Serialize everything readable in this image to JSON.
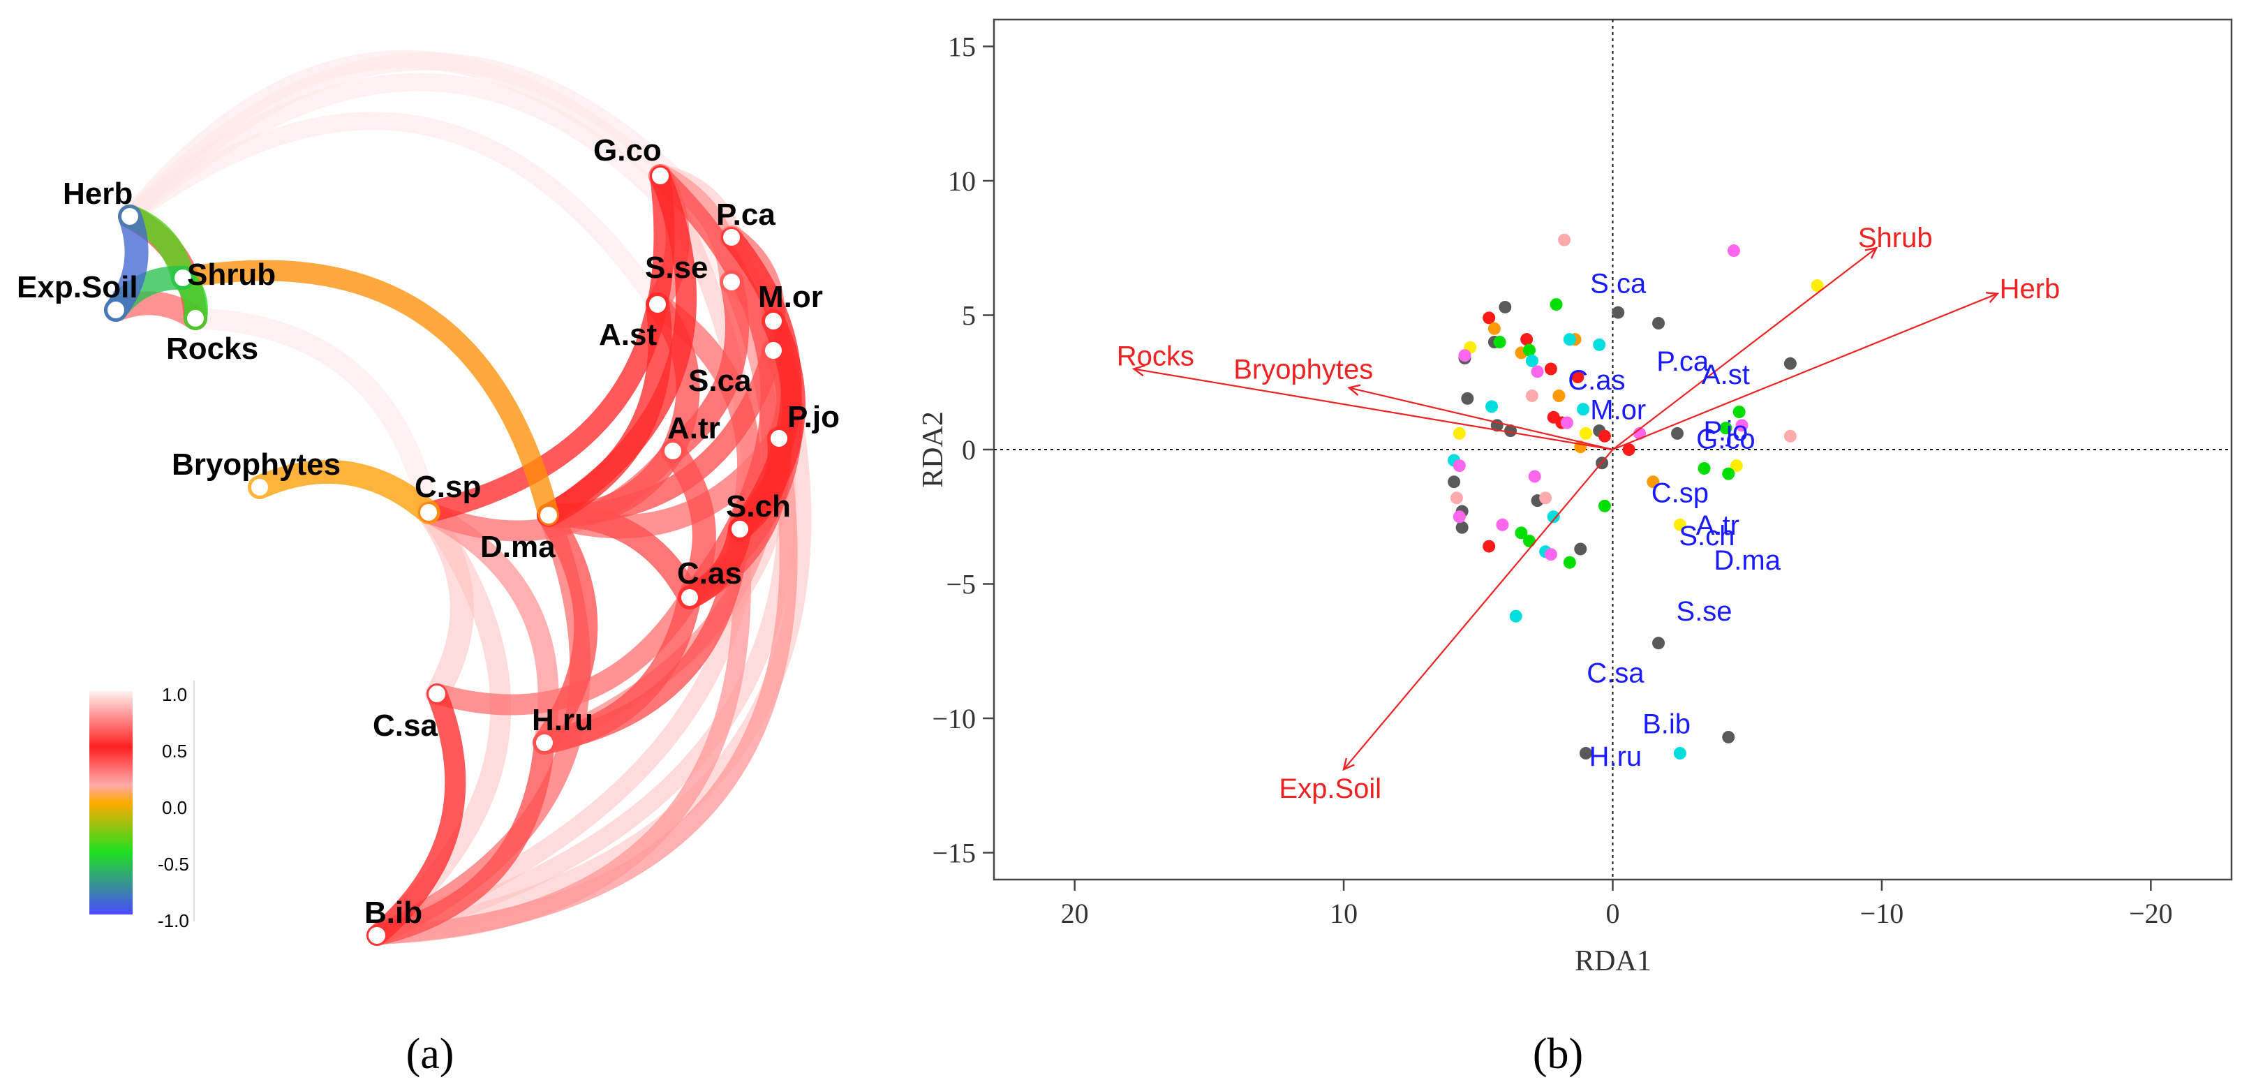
{
  "panel_a": {
    "caption": "(a)",
    "colorbar_ticks": [
      "1.0",
      "0.5",
      "0.0",
      "-0.5",
      "-1.0"
    ],
    "node_labels": [
      "Herb",
      "Exp.Soil",
      "Shrub",
      "Rocks",
      "Bryophytes",
      "G.co",
      "P.ca",
      "S.se",
      "M.or",
      "A.st",
      "S.ca",
      "P.jo",
      "A.tr",
      "C.sp",
      "D.ma",
      "S.ch",
      "C.as",
      "C.sa",
      "H.ru",
      "B.ib"
    ]
  },
  "panel_b": {
    "caption": "(b)"
  },
  "chart_data": [
    {
      "type": "network",
      "title": "",
      "nodes": [
        "Herb",
        "Exp.Soil",
        "Shrub",
        "Rocks",
        "Bryophytes",
        "G.co",
        "P.ca",
        "S.se",
        "M.or",
        "A.st",
        "S.ca",
        "P.jo",
        "A.tr",
        "C.sp",
        "D.ma",
        "S.ch",
        "C.as",
        "C.sa",
        "H.ru",
        "B.ib"
      ],
      "edges": [
        {
          "from": "Herb",
          "to": "Exp.Soil",
          "corr": -0.9
        },
        {
          "from": "Herb",
          "to": "Shrub",
          "corr": -0.4
        },
        {
          "from": "Exp.Soil",
          "to": "Shrub",
          "corr": -0.6
        },
        {
          "from": "Shrub",
          "to": "Rocks",
          "corr": -0.5
        },
        {
          "from": "Herb",
          "to": "Rocks",
          "corr": 0.6
        },
        {
          "from": "Exp.Soil",
          "to": "Rocks",
          "corr": 0.7
        },
        {
          "from": "Shrub",
          "to": "D.ma",
          "corr": 0.1
        },
        {
          "from": "Bryophytes",
          "to": "C.sp",
          "corr": 0.05
        },
        {
          "from": "Herb",
          "to": "G.co",
          "corr": 1.0
        },
        {
          "from": "Herb",
          "to": "P.ca",
          "corr": 1.0
        },
        {
          "from": "Herb",
          "to": "S.se",
          "corr": 1.0
        },
        {
          "from": "Herb",
          "to": "A.st",
          "corr": 1.0
        },
        {
          "from": "Rocks",
          "to": "C.sp",
          "corr": 1.0
        },
        {
          "from": "G.co",
          "to": "P.ca",
          "corr": 0.9
        },
        {
          "from": "G.co",
          "to": "S.se",
          "corr": 0.8
        },
        {
          "from": "G.co",
          "to": "A.st",
          "corr": 0.7
        },
        {
          "from": "G.co",
          "to": "D.ma",
          "corr": 0.5
        },
        {
          "from": "G.co",
          "to": "C.sp",
          "corr": 0.5
        },
        {
          "from": "G.co",
          "to": "C.as",
          "corr": 0.6
        },
        {
          "from": "P.ca",
          "to": "M.or",
          "corr": 0.7
        },
        {
          "from": "P.ca",
          "to": "S.ch",
          "corr": 0.5
        },
        {
          "from": "S.se",
          "to": "A.tr",
          "corr": 0.6
        },
        {
          "from": "S.se",
          "to": "S.ca",
          "corr": 0.8
        },
        {
          "from": "M.or",
          "to": "S.ca",
          "corr": 0.8
        },
        {
          "from": "M.or",
          "to": "S.ch",
          "corr": 0.5
        },
        {
          "from": "M.or",
          "to": "C.as",
          "corr": 0.6
        },
        {
          "from": "A.st",
          "to": "A.tr",
          "corr": 0.6
        },
        {
          "from": "A.st",
          "to": "D.ma",
          "corr": 0.5
        },
        {
          "from": "A.st",
          "to": "S.ch",
          "corr": 0.7
        },
        {
          "from": "S.ca",
          "to": "P.jo",
          "corr": 0.6
        },
        {
          "from": "S.ca",
          "to": "D.ma",
          "corr": 0.6
        },
        {
          "from": "P.jo",
          "to": "S.ch",
          "corr": 0.5
        },
        {
          "from": "P.jo",
          "to": "C.as",
          "corr": 0.6
        },
        {
          "from": "P.jo",
          "to": "D.ma",
          "corr": 0.7
        },
        {
          "from": "A.tr",
          "to": "C.sp",
          "corr": 0.7
        },
        {
          "from": "A.tr",
          "to": "D.ma",
          "corr": 0.6
        },
        {
          "from": "A.tr",
          "to": "C.as",
          "corr": 0.6
        },
        {
          "from": "C.sp",
          "to": "C.sa",
          "corr": 0.9
        },
        {
          "from": "C.sp",
          "to": "H.ru",
          "corr": 0.8
        },
        {
          "from": "D.ma",
          "to": "H.ru",
          "corr": 0.6
        },
        {
          "from": "D.ma",
          "to": "C.as",
          "corr": 0.6
        },
        {
          "from": "D.ma",
          "to": "B.ib",
          "corr": 0.7
        },
        {
          "from": "S.ch",
          "to": "H.ru",
          "corr": 0.6
        },
        {
          "from": "S.ch",
          "to": "C.as",
          "corr": 0.5
        },
        {
          "from": "C.as",
          "to": "H.ru",
          "corr": 0.6
        },
        {
          "from": "C.as",
          "to": "C.sa",
          "corr": 0.7
        },
        {
          "from": "C.sa",
          "to": "B.ib",
          "corr": 0.5
        },
        {
          "from": "H.ru",
          "to": "B.ib",
          "corr": 0.6
        },
        {
          "from": "G.co",
          "to": "B.ib",
          "corr": 0.9
        },
        {
          "from": "P.ca",
          "to": "B.ib",
          "corr": 0.9
        },
        {
          "from": "M.or",
          "to": "B.ib",
          "corr": 0.9
        },
        {
          "from": "P.jo",
          "to": "B.ib",
          "corr": 0.8
        },
        {
          "from": "S.ch",
          "to": "B.ib",
          "corr": 0.8
        },
        {
          "from": "S.se",
          "to": "H.ru",
          "corr": 0.8
        },
        {
          "from": "C.sp",
          "to": "B.ib",
          "corr": 0.9
        },
        {
          "from": "P.ca",
          "to": "H.ru",
          "corr": 0.9
        }
      ],
      "colorscale": {
        "min": -1.0,
        "max": 1.0,
        "colors": [
          "#4a4aff",
          "#20e020",
          "#ffaa00",
          "#ff2a2a",
          "#ffe6e6"
        ]
      }
    },
    {
      "type": "scatter",
      "title": "",
      "xlabel": "RDA1",
      "ylabel": "RDA2",
      "xlim": [
        23,
        -23
      ],
      "ylim": [
        -16,
        16
      ],
      "x_ticks": [
        "20",
        "10",
        "0",
        "−10",
        "−20"
      ],
      "x_tick_values": [
        20,
        10,
        0,
        -10,
        -20
      ],
      "y_ticks": [
        "15",
        "10",
        "5",
        "0",
        "−5",
        "−10",
        "−15"
      ],
      "y_tick_values": [
        15,
        10,
        5,
        0,
        -5,
        -10,
        -15
      ],
      "reference_lines": {
        "x": 0,
        "y": 0,
        "style": "dotted"
      },
      "arrows": [
        {
          "label": "Rocks",
          "x": 17.8,
          "y": 3.0,
          "lx": 17.0,
          "ly": 3.5
        },
        {
          "label": "Bryophytes",
          "x": 9.8,
          "y": 2.3,
          "lx": 11.5,
          "ly": 3.0
        },
        {
          "label": "Shrub",
          "x": -9.8,
          "y": 7.5,
          "lx": -10.5,
          "ly": 7.9
        },
        {
          "label": "Herb",
          "x": -14.3,
          "y": 5.8,
          "lx": -15.5,
          "ly": 6.0
        },
        {
          "label": "Exp.Soil",
          "x": 10.0,
          "y": -11.9,
          "lx": 10.5,
          "ly": -12.6
        }
      ],
      "species": [
        {
          "label": "S.ca",
          "x": -0.2,
          "y": 6.2
        },
        {
          "label": "P.ca",
          "x": -2.6,
          "y": 3.3
        },
        {
          "label": "A.st",
          "x": -4.2,
          "y": 2.8
        },
        {
          "label": "C.as",
          "x": 0.6,
          "y": 2.6
        },
        {
          "label": "M.or",
          "x": -0.2,
          "y": 1.5
        },
        {
          "label": "P.jo",
          "x": -4.2,
          "y": 0.7
        },
        {
          "label": "G.co",
          "x": -4.2,
          "y": 0.4
        },
        {
          "label": "C.sp",
          "x": -2.5,
          "y": -1.6
        },
        {
          "label": "A.tr",
          "x": -3.9,
          "y": -2.8
        },
        {
          "label": "S.ch",
          "x": -3.5,
          "y": -3.2
        },
        {
          "label": "D.ma",
          "x": -5.0,
          "y": -4.1
        },
        {
          "label": "S.se",
          "x": -3.4,
          "y": -6.0
        },
        {
          "label": "C.sa",
          "x": -0.1,
          "y": -8.3
        },
        {
          "label": "B.ib",
          "x": -2.0,
          "y": -10.2
        },
        {
          "label": "H.ru",
          "x": -0.1,
          "y": -11.4
        }
      ],
      "sites": [
        {
          "x": -0.2,
          "y": 5.1,
          "color": "#595959"
        },
        {
          "x": -1.7,
          "y": 4.7,
          "color": "#595959"
        },
        {
          "x": 4.0,
          "y": 5.3,
          "color": "#595959"
        },
        {
          "x": 4.4,
          "y": 4.0,
          "color": "#595959"
        },
        {
          "x": 5.5,
          "y": 3.4,
          "color": "#595959"
        },
        {
          "x": -6.6,
          "y": 3.2,
          "color": "#595959"
        },
        {
          "x": 5.4,
          "y": 1.9,
          "color": "#595959"
        },
        {
          "x": 4.3,
          "y": 0.9,
          "color": "#595959"
        },
        {
          "x": 3.8,
          "y": 0.7,
          "color": "#595959"
        },
        {
          "x": 0.5,
          "y": 0.7,
          "color": "#595959"
        },
        {
          "x": 5.9,
          "y": -1.2,
          "color": "#595959"
        },
        {
          "x": 2.8,
          "y": -1.9,
          "color": "#595959"
        },
        {
          "x": 5.6,
          "y": -2.3,
          "color": "#595959"
        },
        {
          "x": 5.6,
          "y": -2.9,
          "color": "#595959"
        },
        {
          "x": 1.2,
          "y": -3.7,
          "color": "#595959"
        },
        {
          "x": -1.7,
          "y": -7.2,
          "color": "#595959"
        },
        {
          "x": -4.3,
          "y": -10.7,
          "color": "#595959"
        },
        {
          "x": 1.0,
          "y": -11.3,
          "color": "#595959"
        },
        {
          "x": 0.4,
          "y": -0.5,
          "color": "#595959"
        },
        {
          "x": -2.4,
          "y": 0.6,
          "color": "#595959"
        },
        {
          "x": 4.6,
          "y": 4.9,
          "color": "#ff1a1a"
        },
        {
          "x": 3.2,
          "y": 4.1,
          "color": "#ff1a1a"
        },
        {
          "x": 2.3,
          "y": 3.0,
          "color": "#ff1a1a"
        },
        {
          "x": 1.3,
          "y": 2.7,
          "color": "#ff1a1a"
        },
        {
          "x": 2.2,
          "y": 1.2,
          "color": "#ff1a1a"
        },
        {
          "x": 1.9,
          "y": 1.0,
          "color": "#ff1a1a"
        },
        {
          "x": 0.3,
          "y": 0.5,
          "color": "#ff1a1a"
        },
        {
          "x": -0.6,
          "y": 0.0,
          "color": "#ff1a1a"
        },
        {
          "x": 4.6,
          "y": -3.6,
          "color": "#ff1a1a"
        },
        {
          "x": 4.4,
          "y": 4.5,
          "color": "#ff9900"
        },
        {
          "x": 1.4,
          "y": 4.1,
          "color": "#ff9900"
        },
        {
          "x": 3.4,
          "y": 3.6,
          "color": "#ff9900"
        },
        {
          "x": 2.0,
          "y": 2.0,
          "color": "#ff9900"
        },
        {
          "x": 1.2,
          "y": 0.1,
          "color": "#ff9900"
        },
        {
          "x": -1.5,
          "y": -1.2,
          "color": "#ff9900"
        },
        {
          "x": 5.3,
          "y": 3.8,
          "color": "#ffee00"
        },
        {
          "x": -7.6,
          "y": 6.1,
          "color": "#ffee00"
        },
        {
          "x": 5.7,
          "y": 0.6,
          "color": "#ffee00"
        },
        {
          "x": 1.0,
          "y": 0.6,
          "color": "#ffee00"
        },
        {
          "x": -4.6,
          "y": -0.6,
          "color": "#ffee00"
        },
        {
          "x": -2.5,
          "y": -2.8,
          "color": "#ffee00"
        },
        {
          "x": 2.1,
          "y": 5.4,
          "color": "#00dd00"
        },
        {
          "x": 4.2,
          "y": 4.0,
          "color": "#00dd00"
        },
        {
          "x": 3.1,
          "y": 3.7,
          "color": "#00dd00"
        },
        {
          "x": -4.7,
          "y": 1.4,
          "color": "#00dd00"
        },
        {
          "x": -4.2,
          "y": 0.8,
          "color": "#00dd00"
        },
        {
          "x": -3.4,
          "y": -0.7,
          "color": "#00dd00"
        },
        {
          "x": -4.3,
          "y": -0.9,
          "color": "#00dd00"
        },
        {
          "x": 0.3,
          "y": -2.1,
          "color": "#00dd00"
        },
        {
          "x": 3.4,
          "y": -3.1,
          "color": "#00dd00"
        },
        {
          "x": 3.1,
          "y": -3.4,
          "color": "#00dd00"
        },
        {
          "x": 1.6,
          "y": -4.2,
          "color": "#00dd00"
        },
        {
          "x": 1.6,
          "y": 4.1,
          "color": "#00dddd"
        },
        {
          "x": 0.5,
          "y": 3.9,
          "color": "#00dddd"
        },
        {
          "x": 3.0,
          "y": 3.3,
          "color": "#00dddd"
        },
        {
          "x": 4.5,
          "y": 1.6,
          "color": "#00dddd"
        },
        {
          "x": 5.9,
          "y": -0.4,
          "color": "#00dddd"
        },
        {
          "x": 2.2,
          "y": -2.5,
          "color": "#00dddd"
        },
        {
          "x": 2.5,
          "y": -3.8,
          "color": "#00dddd"
        },
        {
          "x": 3.6,
          "y": -6.2,
          "color": "#00dddd"
        },
        {
          "x": -2.5,
          "y": -11.3,
          "color": "#00dddd"
        },
        {
          "x": 1.1,
          "y": 1.5,
          "color": "#00dddd"
        },
        {
          "x": 5.5,
          "y": 3.5,
          "color": "#ff66ee"
        },
        {
          "x": 2.8,
          "y": 2.9,
          "color": "#ff66ee"
        },
        {
          "x": -4.5,
          "y": 7.4,
          "color": "#ff66ee"
        },
        {
          "x": 1.7,
          "y": 1.0,
          "color": "#ff66ee"
        },
        {
          "x": -4.8,
          "y": 0.9,
          "color": "#ff66ee"
        },
        {
          "x": 5.7,
          "y": -0.6,
          "color": "#ff66ee"
        },
        {
          "x": 2.9,
          "y": -1.0,
          "color": "#ff66ee"
        },
        {
          "x": 5.7,
          "y": -2.5,
          "color": "#ff66ee"
        },
        {
          "x": 4.1,
          "y": -2.8,
          "color": "#ff66ee"
        },
        {
          "x": 2.3,
          "y": -3.9,
          "color": "#ff66ee"
        },
        {
          "x": -1.0,
          "y": 0.6,
          "color": "#ff66ee"
        },
        {
          "x": 1.8,
          "y": 7.8,
          "color": "#ffaaaa"
        },
        {
          "x": -6.6,
          "y": 0.5,
          "color": "#ffaaaa"
        },
        {
          "x": 5.8,
          "y": -1.8,
          "color": "#ffaaaa"
        },
        {
          "x": 2.5,
          "y": -1.8,
          "color": "#ffaaaa"
        },
        {
          "x": 3.0,
          "y": 2.0,
          "color": "#ffaaaa"
        }
      ]
    }
  ]
}
